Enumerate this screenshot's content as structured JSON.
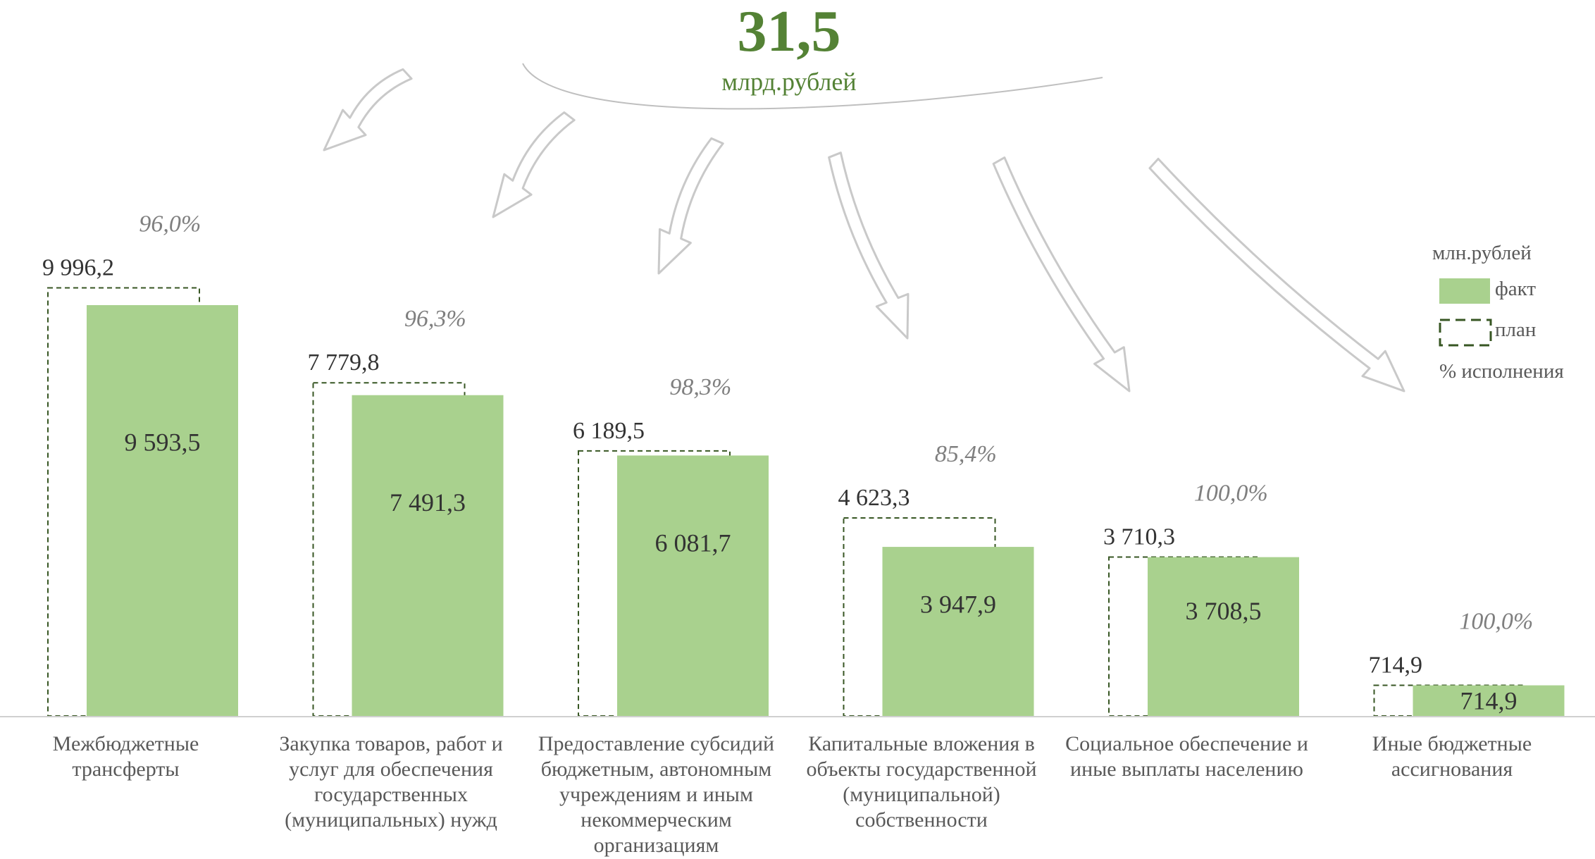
{
  "header": {
    "total_value": "31,5",
    "total_unit": "млрд.рублей"
  },
  "legend": {
    "unit": "млн.рублей",
    "fact_label": "факт",
    "plan_label": "план",
    "pct_label": "% исполнения"
  },
  "colors": {
    "fact": "#a9d18e",
    "plan_border": "#375623",
    "accent": "#548235",
    "arrow_stroke": "#c9c9c9"
  },
  "chart_data": {
    "type": "bar",
    "categories": [
      [
        "Межбюджетные",
        "трансферты"
      ],
      [
        "Закупка товаров, работ и",
        "услуг для обеспечения",
        "государственных",
        "(муниципальных) нужд"
      ],
      [
        "Предоставление субсидий",
        "бюджетным, автономным",
        "учреждениям и иным",
        "некоммерческим",
        "организациям"
      ],
      [
        "Капитальные вложения в",
        "объекты государственной",
        "(муниципальной)",
        "собственности"
      ],
      [
        "Социальное обеспечение и",
        "иные выплаты населению"
      ],
      [
        "Иные бюджетные",
        "ассигнования"
      ]
    ],
    "series": [
      {
        "name": "план",
        "values": [
          9996.2,
          7779.8,
          6189.5,
          4623.3,
          3710.3,
          714.9
        ],
        "labels": [
          "9 996,2",
          "7 779,8",
          "6 189,5",
          "4 623,3",
          "3 710,3",
          "714,9"
        ]
      },
      {
        "name": "факт",
        "values": [
          9593.5,
          7491.3,
          6081.7,
          3947.9,
          3708.5,
          714.9
        ],
        "labels": [
          "9 593,5",
          "7 491,3",
          "6 081,7",
          "3 947,9",
          "3 708,5",
          "714,9"
        ]
      }
    ],
    "percent_execution": [
      "96,0%",
      "96,3%",
      "98,3%",
      "85,4%",
      "100,0%",
      "100,0%"
    ],
    "ylim": [
      0,
      10000
    ],
    "grid": false,
    "legend_position": "top-right"
  }
}
